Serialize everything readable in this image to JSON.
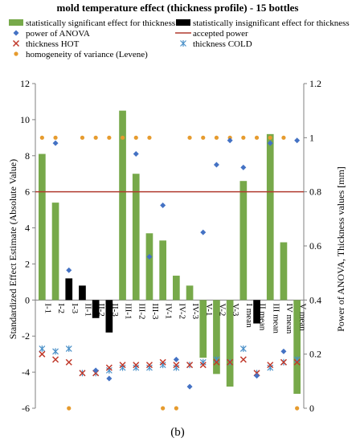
{
  "chart_data": {
    "type": "bar",
    "title": "mold temperature effect (thickness profile) - 15 bottles",
    "ylabel": "Standardized Effect Estimate (Absolute Value)",
    "y2label": "Power of ANOVA, Thickness values [mm]",
    "caption": "(b)",
    "ylim": [
      -6,
      12
    ],
    "yticks": [
      -6,
      -4,
      -2,
      0,
      2,
      4,
      6,
      8,
      10,
      12
    ],
    "y2lim": [
      0,
      1.2
    ],
    "y2ticks": [
      "0",
      "0.2",
      "0.4",
      "0.6",
      "0.8",
      "1",
      "1.2"
    ],
    "categories": [
      "I-1",
      "I-2",
      "I-3",
      "II-1",
      "II-2",
      "II-3",
      "III-1",
      "III-2",
      "III-3",
      "IV-1",
      "IV-2",
      "IV-3",
      "V-1",
      "V-2",
      "V-3",
      "I mean",
      "II mean",
      "III mean",
      "IV mean",
      "V mean"
    ],
    "effect": [
      8.1,
      5.4,
      1.2,
      0.8,
      -1.0,
      -1.8,
      10.5,
      7.0,
      3.7,
      3.3,
      1.35,
      0.8,
      -3.2,
      -4.1,
      -4.8,
      6.6,
      -1.3,
      9.2,
      3.2,
      -5.2
    ],
    "significant": [
      true,
      true,
      false,
      false,
      false,
      false,
      true,
      true,
      true,
      true,
      true,
      true,
      true,
      true,
      true,
      true,
      false,
      true,
      true,
      true
    ],
    "series": [
      {
        "name": "power of ANOVA",
        "marker": "diamond",
        "color": "#4472c4",
        "values": [
          null,
          0.98,
          0.51,
          null,
          0.14,
          0.11,
          null,
          0.94,
          0.56,
          0.75,
          0.18,
          0.08,
          0.65,
          0.9,
          0.99,
          0.89,
          0.12,
          0.98,
          0.21,
          0.99
        ]
      },
      {
        "name": "thickness HOT",
        "marker": "x",
        "color": "#c0392b",
        "values": [
          0.2,
          0.18,
          0.17,
          0.13,
          0.13,
          0.15,
          0.16,
          0.16,
          0.16,
          0.17,
          0.16,
          0.16,
          0.16,
          0.17,
          0.17,
          0.18,
          0.13,
          0.16,
          0.17,
          0.17
        ]
      },
      {
        "name": "thickness COLD",
        "marker": "asterisk",
        "color": "#4a90c8",
        "values": [
          0.22,
          0.21,
          0.22,
          0.13,
          0.13,
          0.14,
          0.15,
          0.15,
          0.15,
          0.16,
          0.15,
          0.16,
          0.17,
          0.18,
          0.17,
          0.22,
          0.13,
          0.15,
          0.17,
          0.18
        ]
      },
      {
        "name": "homogeneity of variance (Levene)",
        "marker": "circle",
        "color": "#e69b2e",
        "values": [
          1,
          1,
          0,
          1,
          1,
          1,
          1,
          1,
          1,
          0,
          0,
          1,
          1,
          1,
          1,
          1,
          1,
          1,
          1,
          0
        ]
      }
    ],
    "accepted_power": 0.8,
    "legend": {
      "position": "top",
      "items": [
        {
          "label": "statistically significant effect for thickness",
          "kind": "bar",
          "color": "#77a94a"
        },
        {
          "label": "statistically insignificant effect for thickness",
          "kind": "bar",
          "color": "#000000"
        },
        {
          "label": "power of ANOVA",
          "kind": "diamond",
          "color": "#4472c4"
        },
        {
          "label": "accepted power",
          "kind": "line",
          "color": "#b03a2e"
        },
        {
          "label": "thickness HOT",
          "kind": "x",
          "color": "#c0392b"
        },
        {
          "label": "thickness COLD",
          "kind": "asterisk",
          "color": "#4a90c8"
        },
        {
          "label": "homogeneity of variance (Levene)",
          "kind": "circle",
          "color": "#e69b2e"
        }
      ]
    },
    "colors": {
      "significant": "#77a94a",
      "insignificant": "#000000",
      "accepted_line": "#b03a2e"
    }
  }
}
